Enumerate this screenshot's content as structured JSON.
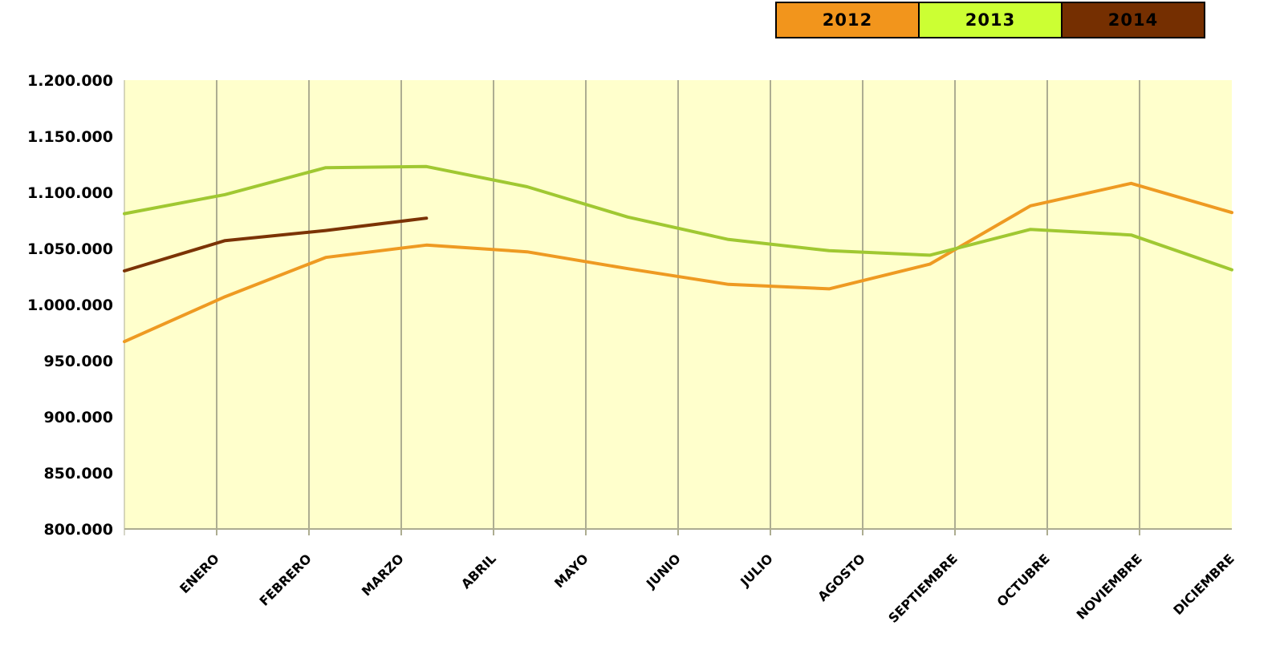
{
  "legend": {
    "items": [
      {
        "label": "2012",
        "color": "#F2951C"
      },
      {
        "label": "2013",
        "color": "#CCFF33"
      },
      {
        "label": "2014",
        "color": "#752F01"
      }
    ]
  },
  "chart_data": {
    "type": "line",
    "title": "",
    "categories": [
      "ENERO",
      "FEBRERO",
      "MARZO",
      "ABRIL",
      "MAYO",
      "JUNIO",
      "JULIO",
      "AGOSTO",
      "SEPTIEMBRE",
      "OCTUBRE",
      "NOVIEMBRE",
      "DICIEMBRE"
    ],
    "y_tick_labels": [
      "1.200.000",
      "1.150.000",
      "1.100.000",
      "1.050.000",
      "1.000.000",
      "950.000",
      "900.000",
      "850.000",
      "800.000"
    ],
    "ylim": [
      800000,
      1200000
    ],
    "y_step": 50000,
    "grid": "vertical-only",
    "legend_position": "top-right",
    "plot_background": "#FFFFCC",
    "gridline_color": "#ADAD91",
    "series": [
      {
        "name": "2012",
        "color": "#EE9A22",
        "values": [
          967000,
          1007000,
          1042000,
          1053000,
          1047000,
          1032000,
          1018000,
          1014000,
          1036000,
          1088000,
          1108000,
          1082000
        ]
      },
      {
        "name": "2013",
        "color": "#A0C832",
        "values": [
          1081000,
          1098000,
          1122000,
          1123000,
          1105000,
          1078000,
          1058000,
          1048000,
          1044000,
          1067000,
          1062000,
          1031000
        ]
      },
      {
        "name": "2014",
        "color": "#7B3305",
        "values": [
          1030000,
          1057000,
          1066000,
          1077000
        ]
      }
    ]
  }
}
